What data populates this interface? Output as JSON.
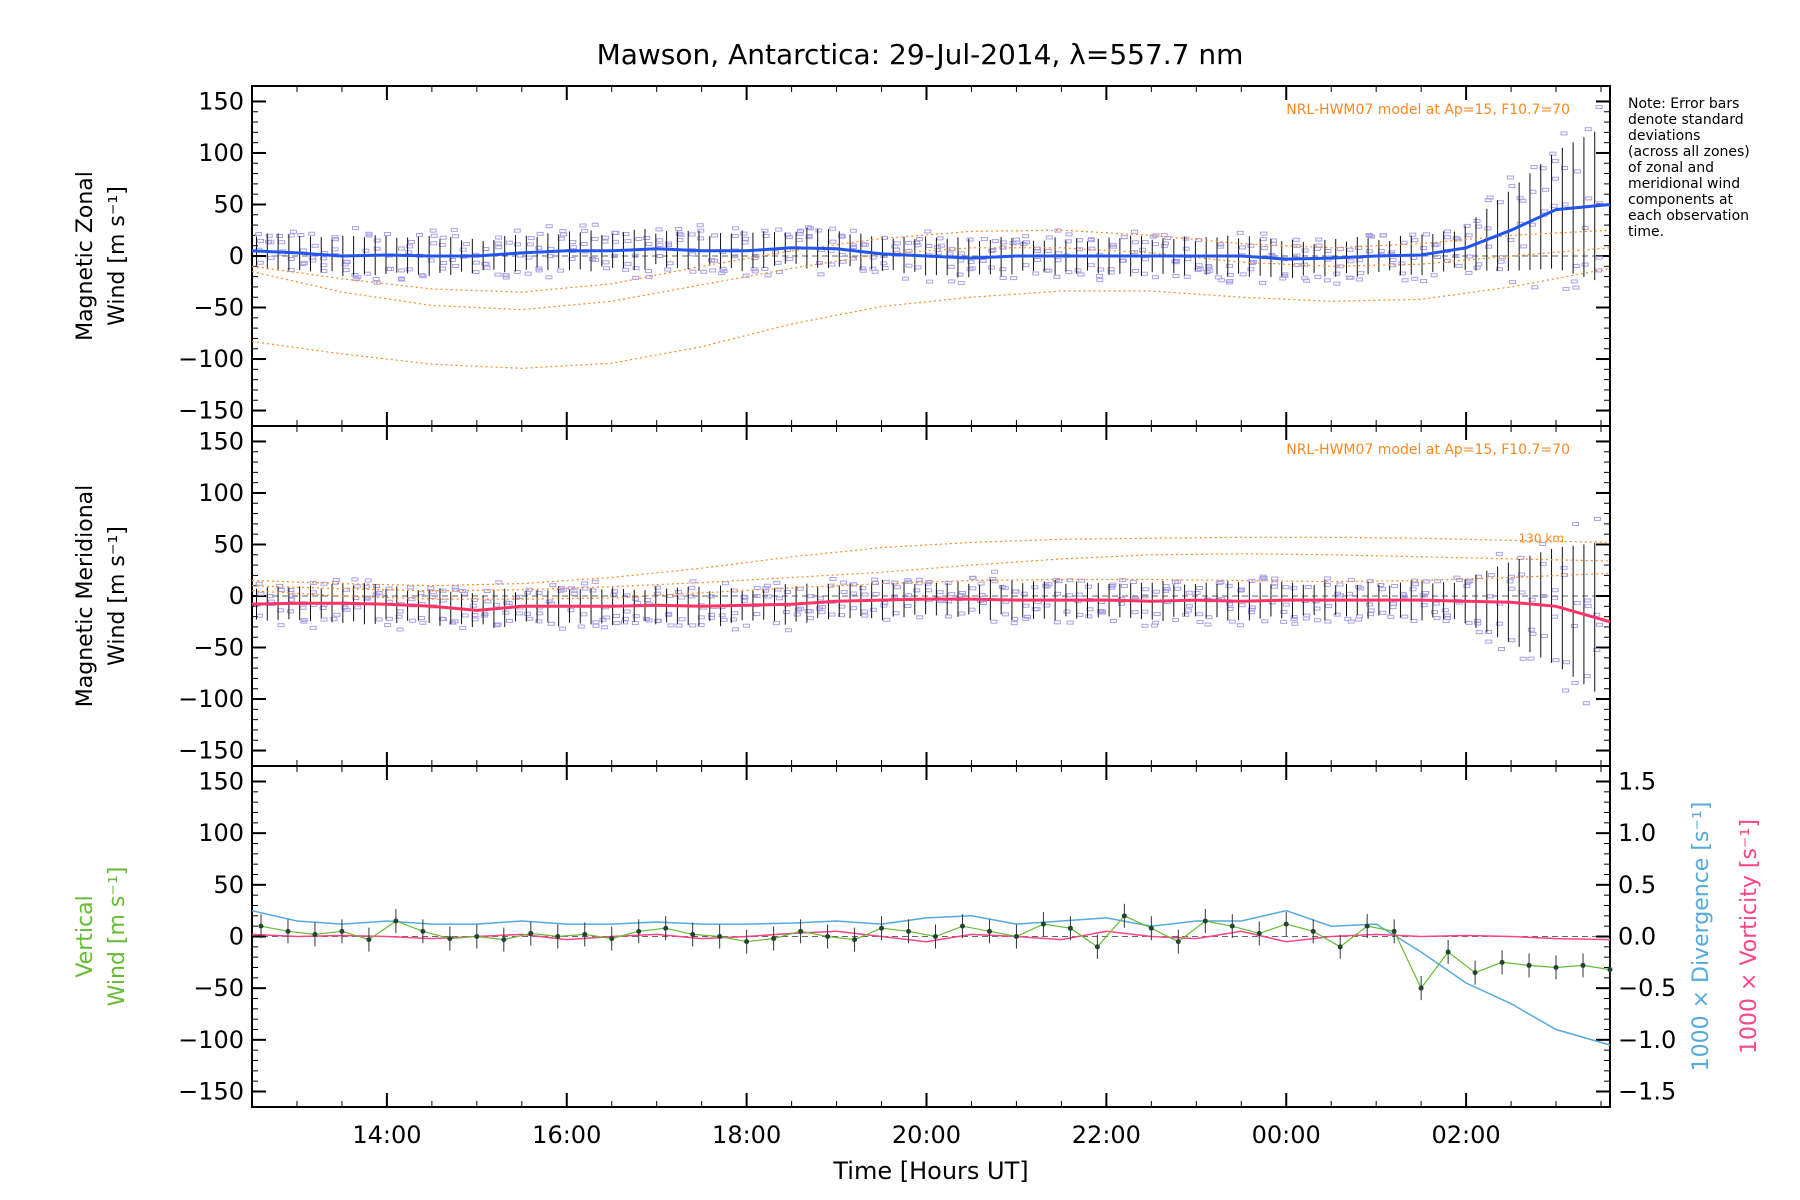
{
  "title": "Mawson, Antarctica: 29-Jul-2014, λ=557.7 nm",
  "note": [
    "Note: Error bars",
    "denote standard",
    "deviations",
    "(across all zones)",
    "of zonal and",
    "meridional wind",
    "components at",
    "each observation",
    "time."
  ],
  "model_label": "NRL-HWM07 model at Ap=15, F10.7=70",
  "colors": {
    "zonal": "#2255ee",
    "meridional": "#ff3366",
    "vertical": "#66bb33",
    "divergence": "#55aadd",
    "vorticity": "#ff4488",
    "model": "#ff8822",
    "scatter": "#a8a0e8",
    "errorbar": "#111111"
  },
  "chart_data": [
    {
      "type": "line",
      "panel": "zonal",
      "ylabel": [
        "Magnetic Zonal",
        "Wind [m s⁻¹]"
      ],
      "xlabel": "",
      "ylim": [
        -165,
        165
      ],
      "xlim": [
        12.5,
        27.6
      ],
      "yticks": [
        150,
        100,
        50,
        0,
        -50,
        -100,
        -150
      ],
      "yticklabels": [
        "150",
        "100",
        "50",
        "0",
        "−50",
        "−100",
        "−150"
      ],
      "annotation": "NRL-HWM07 model at Ap=15, F10.7=70",
      "series": [
        {
          "role": "mean",
          "x": [
            12.5,
            13.0,
            13.5,
            14.0,
            14.5,
            15.0,
            15.5,
            16.0,
            16.5,
            17.0,
            17.5,
            18.0,
            18.5,
            19.0,
            19.5,
            20.0,
            20.5,
            21.0,
            21.5,
            22.0,
            22.5,
            23.0,
            23.5,
            24.0,
            24.5,
            25.0,
            25.5,
            26.0,
            26.5,
            27.0,
            27.6
          ],
          "values": [
            5,
            3,
            0,
            1,
            0,
            0,
            3,
            5,
            5,
            7,
            5,
            5,
            8,
            7,
            2,
            0,
            -2,
            0,
            0,
            0,
            0,
            0,
            0,
            -3,
            -2,
            0,
            1,
            8,
            25,
            45,
            50
          ]
        },
        {
          "role": "model",
          "x": [
            12.5,
            13.5,
            14.5,
            15.5,
            16.5,
            17.5,
            18.5,
            19.5,
            20.5,
            21.5,
            22.5,
            23.5,
            24.5,
            25.5,
            26.5,
            27.6
          ],
          "values": [
            -83,
            -95,
            -105,
            -109,
            -104,
            -88,
            -66,
            -49,
            -40,
            -34,
            -34,
            -40,
            -44,
            -42,
            -30,
            -12
          ]
        },
        {
          "role": "model",
          "x": [
            12.5,
            13.5,
            14.5,
            15.5,
            16.5,
            17.5,
            18.5,
            19.5,
            20.5,
            21.5,
            22.5,
            23.5,
            24.5,
            25.5,
            26.5,
            27.6
          ],
          "values": [
            -15,
            -35,
            -48,
            -52,
            -44,
            -28,
            -12,
            2,
            8,
            8,
            3,
            -6,
            -10,
            -8,
            0,
            8
          ]
        },
        {
          "role": "model",
          "x": [
            12.5,
            13.5,
            14.5,
            15.5,
            16.5,
            17.5,
            18.5,
            19.5,
            20.5,
            21.5,
            22.5,
            23.5,
            24.5,
            25.5,
            26.5,
            27.6
          ],
          "values": [
            -10,
            -22,
            -32,
            -35,
            -27,
            -10,
            5,
            17,
            24,
            25,
            20,
            12,
            8,
            12,
            20,
            25
          ]
        }
      ]
    },
    {
      "type": "line",
      "panel": "meridional",
      "ylabel": [
        "Magnetic Meridional",
        "Wind [m s⁻¹]"
      ],
      "xlabel": "",
      "ylim": [
        -165,
        165
      ],
      "xlim": [
        12.5,
        27.6
      ],
      "yticks": [
        150,
        100,
        50,
        0,
        -50,
        -100,
        -150
      ],
      "yticklabels": [
        "150",
        "100",
        "50",
        "0",
        "−50",
        "−100",
        "−150"
      ],
      "annotation": "NRL-HWM07 model at Ap=15, F10.7=70",
      "model_level_label": "130 km",
      "series": [
        {
          "role": "mean",
          "x": [
            12.5,
            13.0,
            13.5,
            14.0,
            14.5,
            15.0,
            15.5,
            16.0,
            16.5,
            17.0,
            17.5,
            18.0,
            18.5,
            19.0,
            19.5,
            20.0,
            20.5,
            21.0,
            21.5,
            22.0,
            22.5,
            23.0,
            23.5,
            24.0,
            24.5,
            25.0,
            25.5,
            26.0,
            26.5,
            27.0,
            27.6
          ],
          "values": [
            -8,
            -7,
            -7,
            -8,
            -10,
            -14,
            -10,
            -10,
            -10,
            -9,
            -10,
            -9,
            -8,
            -5,
            -4,
            -3,
            -3,
            -4,
            -4,
            -4,
            -5,
            -4,
            -5,
            -4,
            -4,
            -4,
            -4,
            -5,
            -6,
            -10,
            -25
          ]
        },
        {
          "role": "model",
          "x": [
            12.5,
            13.5,
            14.5,
            15.5,
            16.5,
            17.5,
            18.5,
            19.5,
            20.5,
            21.5,
            22.5,
            23.5,
            24.5,
            25.5,
            26.5,
            27.6
          ],
          "values": [
            15,
            12,
            10,
            12,
            18,
            27,
            38,
            47,
            52,
            55,
            56,
            57,
            57,
            56,
            54,
            52
          ]
        },
        {
          "role": "model",
          "x": [
            12.5,
            13.5,
            14.5,
            15.5,
            16.5,
            17.5,
            18.5,
            19.5,
            20.5,
            21.5,
            22.5,
            23.5,
            24.5,
            25.5,
            26.5,
            27.6
          ],
          "values": [
            10,
            7,
            5,
            6,
            9,
            13,
            18,
            23,
            30,
            36,
            40,
            41,
            40,
            38,
            36,
            34
          ]
        },
        {
          "role": "model",
          "x": [
            12.5,
            13.5,
            14.5,
            15.5,
            16.5,
            17.5,
            18.5,
            19.5,
            20.5,
            21.5,
            22.5,
            23.5,
            24.5,
            25.5,
            26.5,
            27.6
          ],
          "values": [
            5,
            0,
            -3,
            -3,
            -2,
            3,
            8,
            12,
            15,
            16,
            16,
            15,
            14,
            15,
            18,
            22
          ]
        }
      ]
    },
    {
      "type": "line",
      "panel": "vertical",
      "ylabel": [
        "Vertical",
        "Wind [m s⁻¹]"
      ],
      "y2label_divergence": "1000 × Divergence [s⁻¹]",
      "y2label_vorticity": "1000 × Vorticity [s⁻¹]",
      "xlabel": "Time [Hours UT]",
      "ylim": [
        -165,
        165
      ],
      "y2lim": [
        -1.5,
        1.5
      ],
      "xlim": [
        12.5,
        27.6
      ],
      "yticks": [
        150,
        100,
        50,
        0,
        -50,
        -100,
        -150
      ],
      "yticklabels": [
        "150",
        "100",
        "50",
        "0",
        "−50",
        "−100",
        "−150"
      ],
      "y2ticks": [
        1.5,
        1.0,
        0.5,
        0.0,
        -0.5,
        -1.0,
        -1.5
      ],
      "y2ticklabels": [
        "1.5",
        "1.0",
        "0.5",
        "0.0",
        "−0.5",
        "−1.0",
        "−1.5"
      ],
      "xticks": [
        14,
        16,
        18,
        20,
        22,
        24,
        26
      ],
      "xticklabels": [
        "14:00",
        "16:00",
        "18:00",
        "20:00",
        "22:00",
        "00:00",
        "02:00"
      ],
      "series": [
        {
          "role": "vertical_wind",
          "x": [
            12.6,
            12.9,
            13.2,
            13.5,
            13.8,
            14.1,
            14.4,
            14.7,
            15.0,
            15.3,
            15.6,
            15.9,
            16.2,
            16.5,
            16.8,
            17.1,
            17.4,
            17.7,
            18.0,
            18.3,
            18.6,
            18.9,
            19.2,
            19.5,
            19.8,
            20.1,
            20.4,
            20.7,
            21.0,
            21.3,
            21.6,
            21.9,
            22.2,
            22.5,
            22.8,
            23.1,
            23.4,
            23.7,
            24.0,
            24.3,
            24.6,
            24.9,
            25.2,
            25.5,
            25.8,
            26.1,
            26.4,
            26.7,
            27.0,
            27.3,
            27.6
          ],
          "values": [
            10,
            5,
            2,
            5,
            -3,
            15,
            5,
            -2,
            0,
            -3,
            3,
            0,
            2,
            -2,
            5,
            8,
            2,
            0,
            -5,
            -2,
            5,
            0,
            -3,
            8,
            5,
            0,
            10,
            5,
            0,
            12,
            8,
            -10,
            20,
            8,
            -5,
            15,
            10,
            3,
            12,
            5,
            -10,
            10,
            5,
            -50,
            -15,
            -35,
            -25,
            -28,
            -30,
            -28,
            -32
          ]
        },
        {
          "role": "divergence",
          "x": [
            12.5,
            13.0,
            13.5,
            14.0,
            14.5,
            15.0,
            15.5,
            16.0,
            16.5,
            17.0,
            17.5,
            18.0,
            18.5,
            19.0,
            19.5,
            20.0,
            20.5,
            21.0,
            21.5,
            22.0,
            22.5,
            23.0,
            23.5,
            24.0,
            24.5,
            25.0,
            25.5,
            26.0,
            26.5,
            27.0,
            27.6
          ],
          "values": [
            0.25,
            0.15,
            0.12,
            0.15,
            0.12,
            0.12,
            0.15,
            0.12,
            0.12,
            0.14,
            0.12,
            0.12,
            0.13,
            0.15,
            0.12,
            0.18,
            0.2,
            0.12,
            0.15,
            0.18,
            0.1,
            0.15,
            0.15,
            0.25,
            0.1,
            0.12,
            -0.15,
            -0.45,
            -0.65,
            -0.9,
            -1.05
          ]
        },
        {
          "role": "vorticity",
          "x": [
            12.5,
            13.0,
            13.5,
            14.0,
            14.5,
            15.0,
            15.5,
            16.0,
            16.5,
            17.0,
            17.5,
            18.0,
            18.5,
            19.0,
            19.5,
            20.0,
            20.5,
            21.0,
            21.5,
            22.0,
            22.5,
            23.0,
            23.5,
            24.0,
            24.5,
            25.0,
            25.5,
            26.0,
            26.5,
            27.0,
            27.6
          ],
          "values": [
            0.02,
            0.0,
            0.01,
            0.0,
            -0.02,
            0.0,
            0.02,
            -0.03,
            0.0,
            0.02,
            -0.02,
            0.0,
            0.03,
            0.05,
            0.0,
            -0.05,
            0.02,
            0.0,
            -0.03,
            0.05,
            0.0,
            -0.02,
            0.05,
            -0.05,
            0.0,
            0.02,
            0.0,
            0.01,
            0.0,
            -0.02,
            -0.03
          ]
        }
      ]
    }
  ]
}
